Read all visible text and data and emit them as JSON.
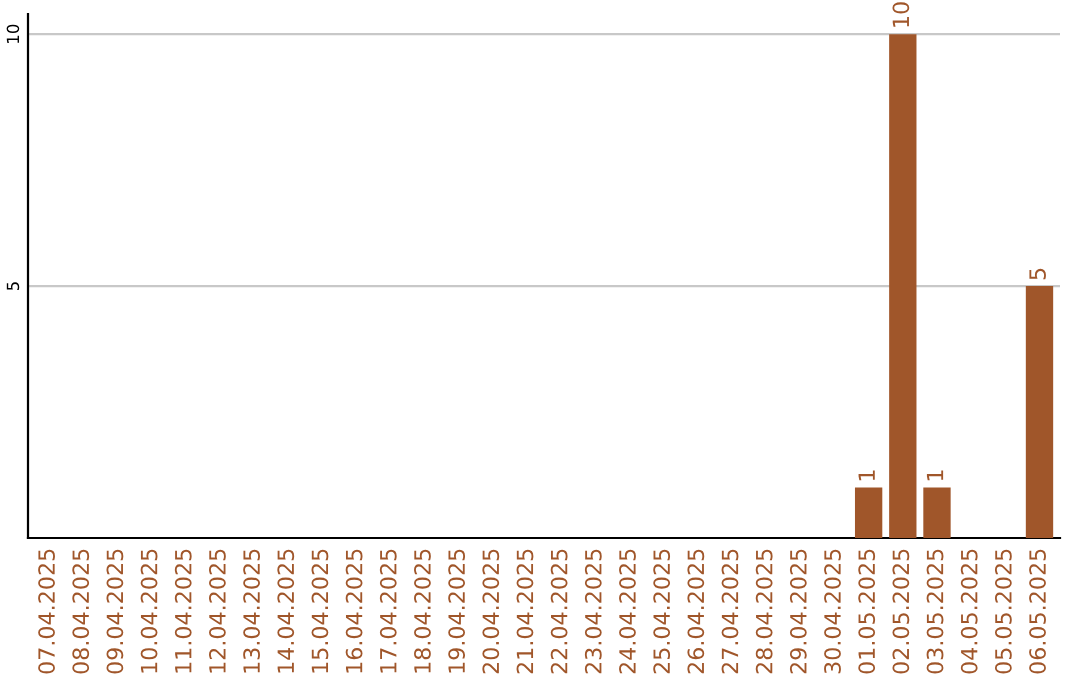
{
  "chart_data": {
    "type": "bar",
    "categories": [
      "07.04.2025",
      "08.04.2025",
      "09.04.2025",
      "10.04.2025",
      "11.04.2025",
      "12.04.2025",
      "13.04.2025",
      "14.04.2025",
      "15.04.2025",
      "16.04.2025",
      "17.04.2025",
      "18.04.2025",
      "19.04.2025",
      "20.04.2025",
      "21.04.2025",
      "22.04.2025",
      "23.04.2025",
      "24.04.2025",
      "25.04.2025",
      "26.04.2025",
      "27.04.2025",
      "28.04.2025",
      "29.04.2025",
      "30.04.2025",
      "01.05.2025",
      "02.05.2025",
      "03.05.2025",
      "04.05.2025",
      "05.05.2025",
      "06.05.2025"
    ],
    "values": [
      0,
      0,
      0,
      0,
      0,
      0,
      0,
      0,
      0,
      0,
      0,
      0,
      0,
      0,
      0,
      0,
      0,
      0,
      0,
      0,
      0,
      0,
      0,
      0,
      1,
      10,
      1,
      0,
      0,
      5
    ],
    "value_labels": [
      null,
      null,
      null,
      null,
      null,
      null,
      null,
      null,
      null,
      null,
      null,
      null,
      null,
      null,
      null,
      null,
      null,
      null,
      null,
      null,
      null,
      null,
      null,
      null,
      "1",
      "10",
      "1",
      null,
      null,
      "5"
    ],
    "color": "#a0562a",
    "ylim": [
      0,
      10.4
    ],
    "yticks": [
      5,
      10
    ],
    "grid": "y",
    "legend": false
  }
}
